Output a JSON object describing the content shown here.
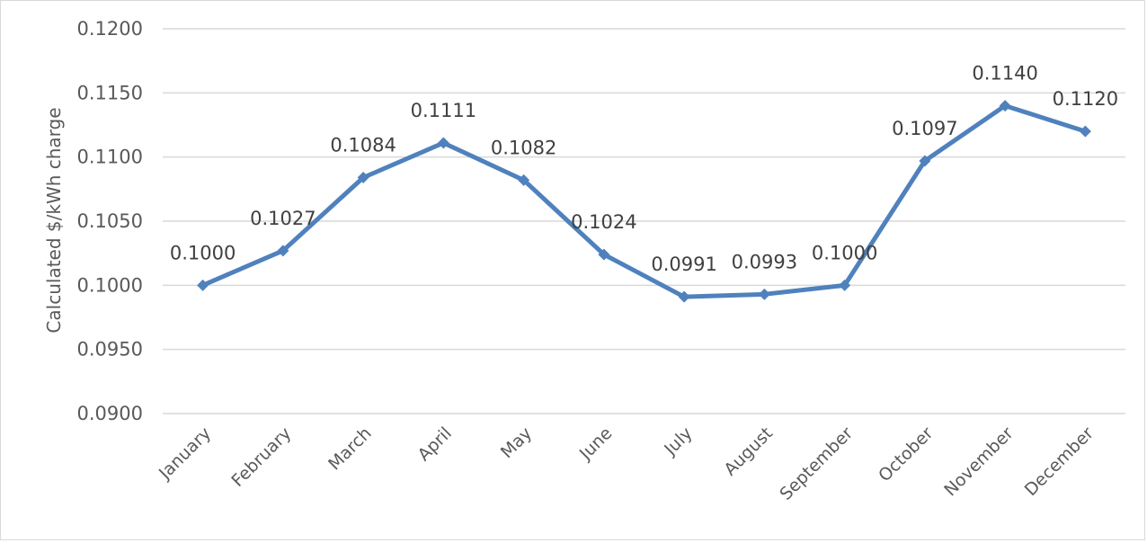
{
  "chart_data": {
    "type": "line",
    "title": "",
    "xlabel": "",
    "ylabel": "Calculated $/kWh charge",
    "ylim": [
      0.09,
      0.12
    ],
    "y_ticks": [
      "0.0900",
      "0.0950",
      "0.1000",
      "0.1050",
      "0.1100",
      "0.1150",
      "0.1200"
    ],
    "grid": "horizontal",
    "legend": "none",
    "categories": [
      "January",
      "February",
      "March",
      "April",
      "May",
      "June",
      "July",
      "August",
      "September",
      "October",
      "November",
      "December"
    ],
    "series": [
      {
        "color": "#4f81bd",
        "marker": "diamond",
        "values": [
          0.1,
          0.1027,
          0.1084,
          0.1111,
          0.1082,
          0.1024,
          0.0991,
          0.0993,
          0.1,
          0.1097,
          0.114,
          0.112
        ],
        "data_labels": [
          "0.1000",
          "0.1027",
          "0.1084",
          "0.1111",
          "0.1082",
          "0.1024",
          "0.0991",
          "0.0993",
          "0.1000",
          "0.1097",
          "0.1140",
          "0.1120"
        ]
      }
    ],
    "colors": {
      "gridline": "#d9d9d9",
      "text": "#595959"
    }
  }
}
